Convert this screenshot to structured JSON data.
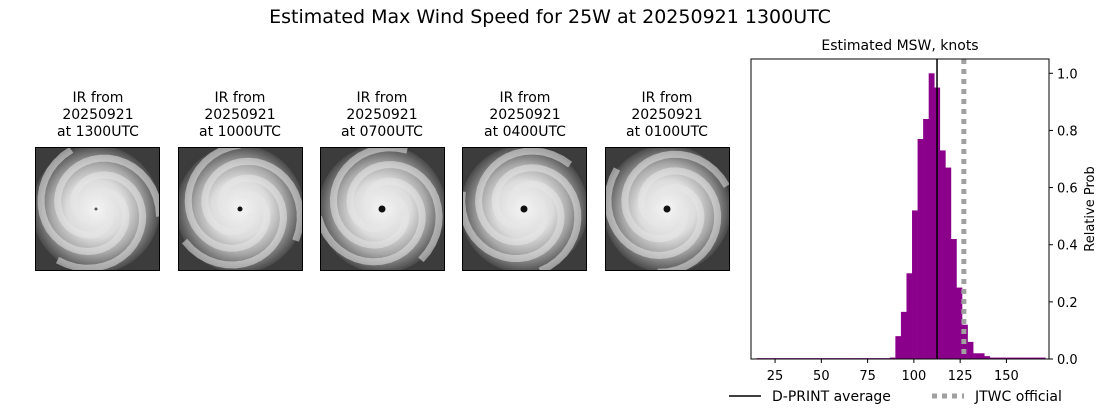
{
  "title": "Estimated Max Wind Speed for 25W at 20250921 1300UTC",
  "ir_panels": [
    {
      "line1": "IR from",
      "line2": "20250921",
      "line3": "at 1300UTC",
      "eye": "partial"
    },
    {
      "line1": "IR from",
      "line2": "20250921",
      "line3": "at 1000UTC",
      "eye": "small"
    },
    {
      "line1": "IR from",
      "line2": "20250921",
      "line3": "at 0700UTC",
      "eye": "clear"
    },
    {
      "line1": "IR from",
      "line2": "20250921",
      "line3": "at 0400UTC",
      "eye": "clear"
    },
    {
      "line1": "IR from",
      "line2": "20250921",
      "line3": "at 0100UTC",
      "eye": "clear"
    }
  ],
  "chart_data": {
    "type": "bar",
    "title": "Estimated MSW, knots",
    "ylabel": "Relative Prob",
    "xlabel": "",
    "xlim": [
      12,
      173
    ],
    "ylim": [
      0,
      1.05
    ],
    "xticks": [
      25,
      50,
      75,
      100,
      125,
      150
    ],
    "yticks": [
      0.0,
      0.2,
      0.4,
      0.6,
      0.8,
      1.0
    ],
    "ytick_labels": [
      "0.0",
      "0.2",
      "0.4",
      "0.6",
      "0.8",
      "1.0"
    ],
    "bin_width": 3,
    "bins_left": [
      15,
      18,
      21,
      24,
      27,
      30,
      33,
      36,
      39,
      42,
      45,
      48,
      51,
      54,
      57,
      60,
      63,
      66,
      69,
      72,
      75,
      78,
      81,
      84,
      87,
      90,
      93,
      96,
      99,
      102,
      105,
      108,
      111,
      114,
      117,
      120,
      123,
      126,
      129,
      132,
      135,
      138,
      141,
      144,
      147,
      150,
      153,
      156,
      159,
      162,
      165,
      168
    ],
    "values": [
      0.003,
      0.003,
      0.003,
      0.003,
      0.003,
      0.003,
      0.003,
      0.003,
      0.003,
      0.003,
      0.003,
      0.003,
      0.003,
      0.003,
      0.003,
      0.003,
      0.003,
      0.003,
      0.003,
      0.003,
      0.003,
      0.003,
      0.003,
      0.003,
      0.005,
      0.08,
      0.165,
      0.3,
      0.52,
      0.77,
      0.84,
      1.0,
      0.95,
      0.73,
      0.67,
      0.42,
      0.25,
      0.12,
      0.06,
      0.02,
      0.02,
      0.01,
      0.005,
      0.005,
      0.005,
      0.005,
      0.005,
      0.005,
      0.005,
      0.005,
      0.005,
      0.005
    ],
    "bar_color": "#8b008b",
    "dprint_average": 112.5,
    "jtwc_official": 127,
    "legend": {
      "placement": "bottom",
      "items": [
        {
          "label": "D-PRINT average",
          "color": "#000000",
          "style": "solid"
        },
        {
          "label": "JTWC official",
          "color": "#a0a0a0",
          "style": "dotted"
        }
      ]
    }
  }
}
